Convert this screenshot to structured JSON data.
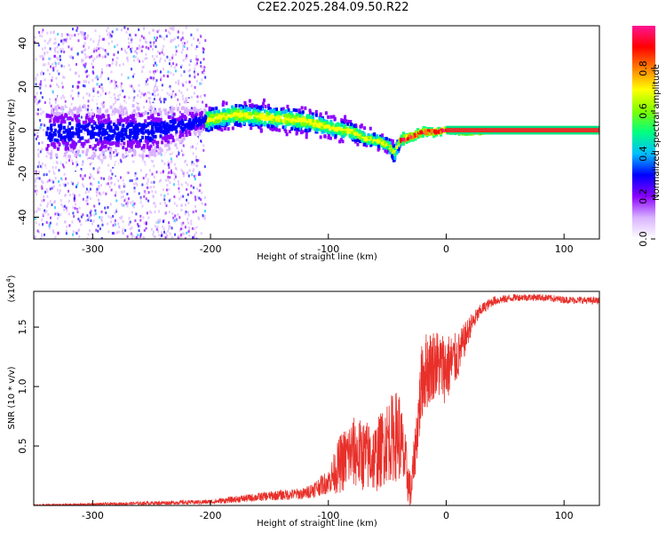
{
  "figure": {
    "title": "C2E2.2025.284.09.50.R22"
  },
  "colors": {
    "snr_line": "#e8302a",
    "frame": "#000000",
    "narrow_line": "#e8302a"
  },
  "chart_data": [
    {
      "type": "heatmap",
      "xlabel": "Height of straight line (km)",
      "ylabel": "Frequency (Hz)",
      "xlim": [
        -350,
        130
      ],
      "ylim": [
        -50,
        48
      ],
      "x_ticks": [
        -300,
        -200,
        -100,
        0,
        100
      ],
      "y_ticks": [
        -40,
        -20,
        0,
        20,
        40
      ],
      "grid": false,
      "colorbar": {
        "label": "Normalized spectral amplitude",
        "range": [
          0,
          1
        ],
        "ticks": [
          "0.0",
          "0.2",
          "0.4",
          "0.6",
          "0.8"
        ],
        "colormap": [
          "#ffffff",
          "#d9b3ff",
          "#8b00ff",
          "#0000ff",
          "#00bfff",
          "#00ff80",
          "#7fff00",
          "#ffff00",
          "#ff8000",
          "#ff0000",
          "#ff1493"
        ]
      },
      "track": {
        "x": [
          -340,
          -300,
          -250,
          -200,
          -180,
          -160,
          -140,
          -120,
          -100,
          -80,
          -70,
          -60,
          -50,
          -45,
          -40,
          -30,
          -20,
          -10,
          0,
          10,
          130
        ],
        "y": [
          0,
          0,
          0,
          6,
          8,
          7,
          6,
          5,
          2,
          0,
          -3,
          -4,
          -6,
          -10,
          -4,
          -2,
          0,
          0,
          1,
          0,
          0
        ],
        "spread": [
          14,
          14,
          14,
          5,
          5,
          5,
          5,
          5,
          4,
          4,
          3,
          3,
          3,
          4,
          2,
          1.5,
          1.5,
          1.5,
          1,
          1,
          1
        ]
      },
      "noise_region_x": [
        -350,
        -205
      ],
      "narrow_line_x": [
        0,
        130
      ]
    },
    {
      "type": "line",
      "xlabel": "Height of straight line (km)",
      "ylabel": "SNR (10 * v/v)",
      "y_multiplier": "(x10",
      "y_multiplier_exp": "4",
      "y_multiplier_close": ")",
      "xlim": [
        -350,
        130
      ],
      "ylim": [
        0,
        1.8
      ],
      "x_ticks": [
        -300,
        -200,
        -100,
        0,
        100
      ],
      "y_ticks": [
        0.5,
        1.0,
        1.5
      ],
      "y_tick_labels": [
        "0.5",
        "1.0",
        "1.5"
      ],
      "grid": false,
      "series": [
        {
          "x": [
            -350,
            -300,
            -250,
            -200,
            -150,
            -120,
            -100,
            -90,
            -80,
            -70,
            -60,
            -50,
            -40,
            -30,
            -20,
            -10,
            0,
            10,
            20,
            30,
            40,
            60,
            80,
            100,
            130
          ],
          "y": [
            0.0,
            0.01,
            0.02,
            0.03,
            0.08,
            0.1,
            0.2,
            0.35,
            0.45,
            0.42,
            0.4,
            0.55,
            0.6,
            0.1,
            1.1,
            1.2,
            1.15,
            1.25,
            1.5,
            1.65,
            1.72,
            1.75,
            1.75,
            1.73,
            1.72
          ],
          "noise": [
            0.01,
            0.01,
            0.015,
            0.02,
            0.04,
            0.05,
            0.1,
            0.25,
            0.3,
            0.3,
            0.3,
            0.35,
            0.4,
            0.15,
            0.35,
            0.3,
            0.3,
            0.2,
            0.1,
            0.05,
            0.04,
            0.03,
            0.03,
            0.03,
            0.03
          ]
        }
      ]
    }
  ]
}
